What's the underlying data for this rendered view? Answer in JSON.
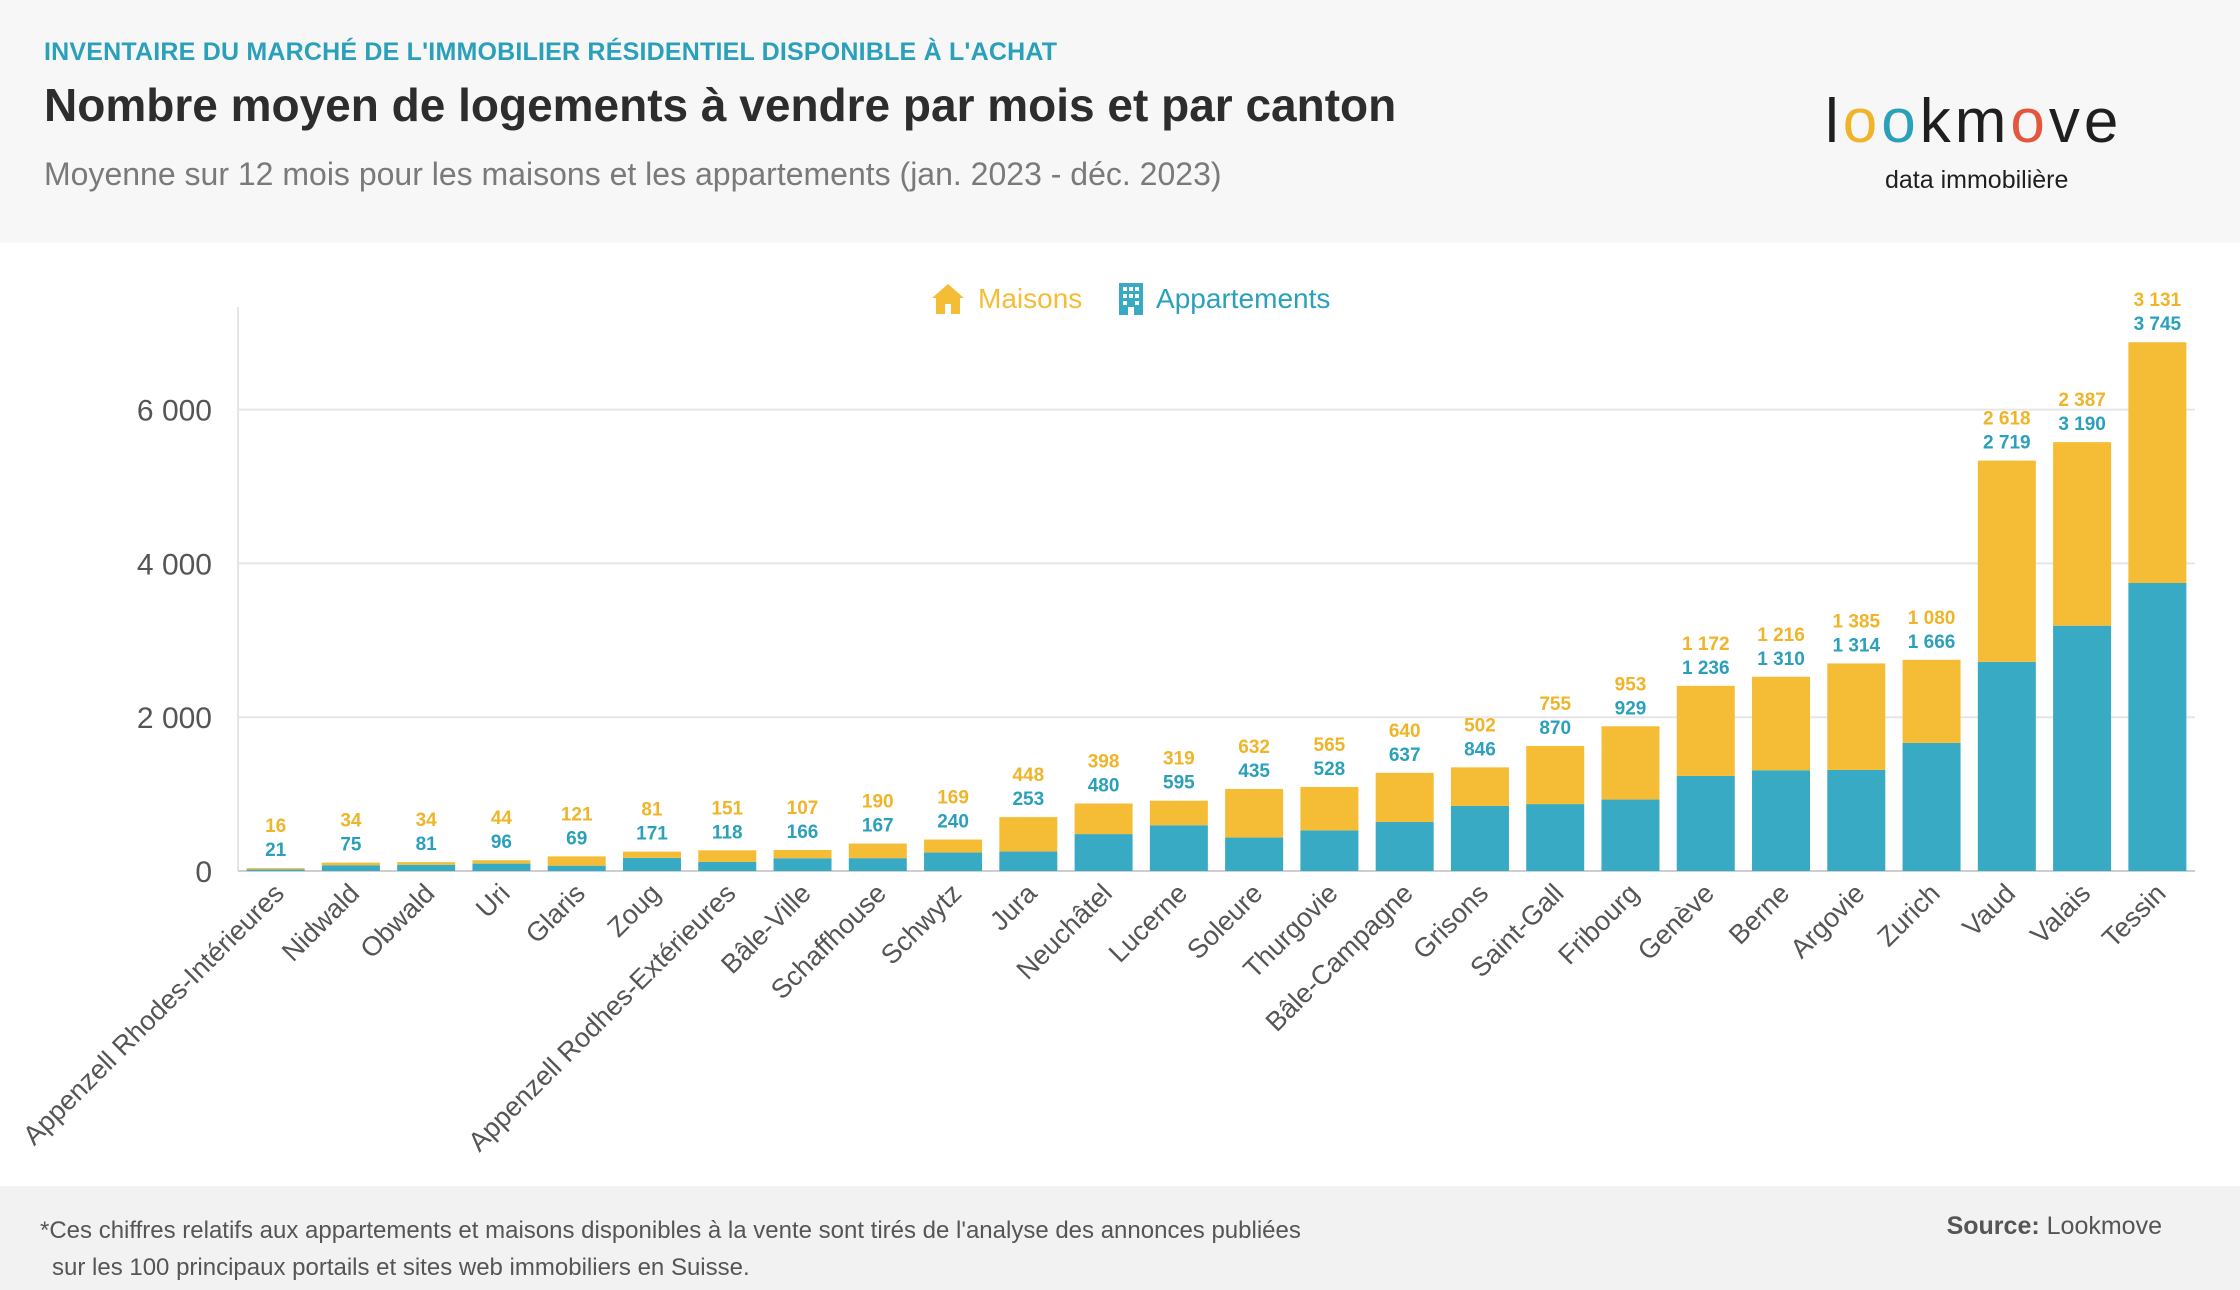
{
  "header": {
    "kicker": "INVENTAIRE DU MARCHÉ DE L'IMMOBILIER RÉSIDENTIEL DISPONIBLE À L'ACHAT",
    "title": "Nombre moyen de logements à vendre par mois et par canton",
    "subtitle": "Moyenne sur 12 mois pour les maisons et les appartements (jan. 2023 - déc. 2023)"
  },
  "logo": {
    "l": "l",
    "o1": "o",
    "o2": "o",
    "rest1": "km",
    "o3": "o",
    "rest2": "ve",
    "tagline": "data immobilière"
  },
  "legend": {
    "maisons": "Maisons",
    "appartements": "Appartements",
    "maisons_icon": "house-icon",
    "appartements_icon": "building-icon"
  },
  "colors": {
    "maisons": "#f5bd35",
    "appartements": "#39aac3",
    "accent": "#2aa0bb"
  },
  "footer": {
    "note_line1": "*Ces chiffres relatifs aux appartements et maisons disponibles à la vente sont tirés de l'analyse des annonces publiées",
    "note_line2": "sur les 100 principaux portails et sites web immobiliers en Suisse.",
    "source_label": "Source:",
    "source_value": "Lookmove"
  },
  "chart_data": {
    "type": "bar",
    "stacked": true,
    "categories": [
      "Appenzell Rhodes-Intérieures",
      "Nidwald",
      "Obwald",
      "Uri",
      "Glaris",
      "Zoug",
      "Appenzell Rodhes-Extérieures",
      "Bâle-Ville",
      "Schaffhouse",
      "Schwytz",
      "Jura",
      "Neuchâtel",
      "Lucerne",
      "Soleure",
      "Thurgovie",
      "Bâle-Campagne",
      "Grisons",
      "Saint-Gall",
      "Fribourg",
      "Genève",
      "Berne",
      "Argovie",
      "Zurich",
      "Vaud",
      "Valais",
      "Tessin"
    ],
    "series": [
      {
        "name": "Appartements",
        "values": [
          21,
          75,
          81,
          96,
          69,
          171,
          118,
          166,
          167,
          240,
          253,
          480,
          595,
          435,
          528,
          637,
          846,
          870,
          929,
          1236,
          1310,
          1314,
          1666,
          2719,
          3190,
          3745
        ],
        "labels": [
          "21",
          "75",
          "81",
          "96",
          "69",
          "171",
          "118",
          "166",
          "167",
          "240",
          "253",
          "480",
          "595",
          "435",
          "528",
          "637",
          "846",
          "870",
          "929",
          "1 236",
          "1 310",
          "1 314",
          "1 666",
          "2 719",
          "3 190",
          "3 745"
        ]
      },
      {
        "name": "Maisons",
        "values": [
          16,
          34,
          34,
          44,
          121,
          81,
          151,
          107,
          190,
          169,
          448,
          398,
          319,
          632,
          565,
          640,
          502,
          755,
          953,
          1172,
          1216,
          1385,
          1080,
          2618,
          2387,
          3131
        ],
        "labels": [
          "16",
          "34",
          "34",
          "44",
          "121",
          "81",
          "151",
          "107",
          "190",
          "169",
          "448",
          "398",
          "319",
          "632",
          "565",
          "640",
          "502",
          "755",
          "953",
          "1 172",
          "1 216",
          "1 385",
          "1 080",
          "2 618",
          "2 387",
          "3 131"
        ]
      }
    ],
    "yticks": [
      0,
      2000,
      4000,
      6000
    ],
    "ytick_labels": [
      "0",
      "2 000",
      "4 000",
      "6 000"
    ],
    "ylim": [
      0,
      7300
    ],
    "grid": true,
    "legend_position": "top-center"
  }
}
